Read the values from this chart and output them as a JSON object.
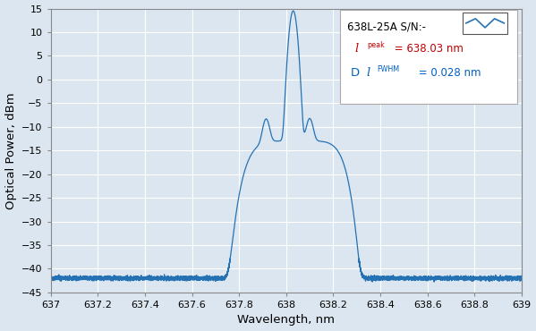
{
  "title": "",
  "xlabel": "Wavelength, nm",
  "ylabel": "Optical Power, dBm",
  "xlim": [
    637,
    639
  ],
  "ylim": [
    -45,
    15
  ],
  "xticks": [
    637,
    637.2,
    637.4,
    637.6,
    637.8,
    638,
    638.2,
    638.4,
    638.6,
    638.8,
    639
  ],
  "yticks": [
    -45,
    -40,
    -35,
    -30,
    -25,
    -20,
    -15,
    -10,
    -5,
    0,
    5,
    10,
    15
  ],
  "line_color": "#2472b4",
  "background_color": "#dce6f0",
  "grid_color": "#c8d4e0",
  "plot_bg_color": "#dce6f0",
  "peak_wavelength": 638.03,
  "fwhm": 0.028,
  "noise_floor": -42.0,
  "legend_label": "638L-25A S/N:-",
  "legend_peak_value": "= 638.03 nm",
  "legend_fwhm_value": "= 0.028 nm"
}
